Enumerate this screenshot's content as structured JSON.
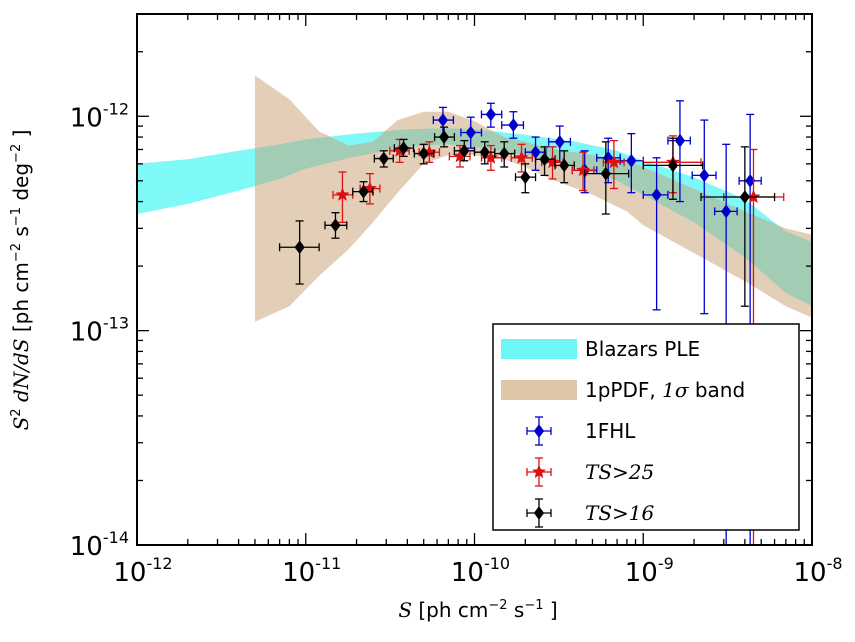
{
  "chart_data": {
    "type": "scatter",
    "title": "",
    "xlabel": {
      "text": "S [ph cm",
      "exp1": "−2",
      "mid": " s",
      "exp2": "−1",
      "tail": " ]"
    },
    "ylabel": {
      "text": "S² dN/dS [ph cm",
      "exp1": "−2",
      "mid": " s",
      "exp2": "−1",
      "mid2": " deg",
      "exp3": "−2",
      "tail": " ]"
    },
    "xscale": "log",
    "yscale": "log",
    "xlim": [
      1e-12,
      1e-08
    ],
    "ylim": [
      1e-14,
      3e-12
    ],
    "x_ticks": [
      {
        "value": 1e-12,
        "base": "10",
        "exp": "-12"
      },
      {
        "value": 1e-11,
        "base": "10",
        "exp": "-11"
      },
      {
        "value": 1e-10,
        "base": "10",
        "exp": "-10"
      },
      {
        "value": 1e-09,
        "base": "10",
        "exp": "-9"
      },
      {
        "value": 1e-08,
        "base": "10",
        "exp": "-8"
      }
    ],
    "y_ticks": [
      {
        "value": 1e-14,
        "base": "10",
        "exp": "-14"
      },
      {
        "value": 1e-13,
        "base": "10",
        "exp": "-13"
      },
      {
        "value": 1e-12,
        "base": "10",
        "exp": "-12"
      }
    ],
    "legend_position": "bottom-right",
    "bands": [
      {
        "name": "Blazars PLE",
        "color": "#54f5f5",
        "opacity": 0.75,
        "x": [
          1e-12,
          2e-12,
          4e-12,
          7e-12,
          1e-11,
          2e-11,
          4e-11,
          7e-11,
          1e-10,
          2e-10,
          4e-10,
          7e-10,
          1e-09,
          2e-09,
          4e-09,
          7e-09,
          1e-08
        ],
        "upper": [
          6e-13,
          6.3e-13,
          6.9e-13,
          7.4e-13,
          7.8e-13,
          8.3e-13,
          8.7e-13,
          8.8e-13,
          8.7e-13,
          8.2e-13,
          7.6e-13,
          6.9e-13,
          6.2e-13,
          5.2e-13,
          4.1e-13,
          2.9e-13,
          2.6e-13
        ],
        "lower": [
          3.5e-13,
          3.9e-13,
          4.5e-13,
          5.1e-13,
          5.7e-13,
          6.5e-13,
          7.2e-13,
          7.4e-13,
          7.2e-13,
          6.6e-13,
          5.8e-13,
          5e-13,
          4.3e-13,
          3.2e-13,
          2.2e-13,
          1.5e-13,
          1.3e-13
        ]
      },
      {
        "name": "1pPDF, 1σ band",
        "color": "#c8a070",
        "opacity": 0.5,
        "x": [
          5e-12,
          8e-12,
          1.2e-11,
          1.8e-11,
          2.5e-11,
          3.5e-11,
          5e-11,
          7e-11,
          1e-10,
          1.5e-10,
          2e-10,
          3e-10,
          5e-10,
          8e-10,
          1e-09,
          2e-09,
          4e-09,
          7e-09,
          1e-08
        ],
        "upper": [
          1.55e-12,
          1.2e-12,
          8.5e-13,
          7.3e-13,
          7.6e-13,
          9.6e-13,
          1.05e-12,
          1.05e-12,
          9.5e-13,
          8e-13,
          7.6e-13,
          7e-13,
          6.6e-13,
          6.2e-13,
          5.8e-13,
          4.6e-13,
          3.6e-13,
          3e-13,
          2.8e-13
        ],
        "lower": [
          1.1e-13,
          1.3e-13,
          1.8e-13,
          2.4e-13,
          3.2e-13,
          4.4e-13,
          6e-13,
          6.6e-13,
          6.6e-13,
          6.3e-13,
          5.8e-13,
          5e-13,
          4.3e-13,
          3.6e-13,
          3.1e-13,
          2.3e-13,
          1.7e-13,
          1.3e-13,
          1.15e-13
        ]
      }
    ],
    "series": [
      {
        "name": "1FHL",
        "color": "#0000cc",
        "marker": "diamond",
        "points": [
          {
            "x": 6.5e-11,
            "y": 9.6e-13,
            "xlo": 5.7e-11,
            "xhi": 7.5e-11,
            "ylo": 8e-13,
            "yhi": 1.1e-12
          },
          {
            "x": 9.5e-11,
            "y": 8.4e-13,
            "xlo": 8.3e-11,
            "xhi": 1.1e-10,
            "ylo": 7.1e-13,
            "yhi": 9.9e-13
          },
          {
            "x": 1.25e-10,
            "y": 1.02e-12,
            "xlo": 1.1e-10,
            "xhi": 1.45e-10,
            "ylo": 8.9e-13,
            "yhi": 1.15e-12
          },
          {
            "x": 1.7e-10,
            "y": 9.1e-13,
            "xlo": 1.45e-10,
            "xhi": 1.95e-10,
            "ylo": 7.9e-13,
            "yhi": 1.05e-12
          },
          {
            "x": 2.3e-10,
            "y": 6.8e-13,
            "xlo": 2e-10,
            "xhi": 2.65e-10,
            "ylo": 5.6e-13,
            "yhi": 8e-13
          },
          {
            "x": 3.2e-10,
            "y": 7.6e-13,
            "xlo": 2.75e-10,
            "xhi": 3.7e-10,
            "ylo": 6.1e-13,
            "yhi": 9e-13
          },
          {
            "x": 4.5e-10,
            "y": 5.6e-13,
            "xlo": 3.8e-10,
            "xhi": 5.3e-10,
            "ylo": 4.4e-13,
            "yhi": 6.9e-13
          },
          {
            "x": 6.2e-10,
            "y": 6.4e-13,
            "xlo": 5.3e-10,
            "xhi": 7.3e-10,
            "ylo": 4.9e-13,
            "yhi": 7.9e-13
          },
          {
            "x": 8.5e-10,
            "y": 6.2e-13,
            "xlo": 7.3e-10,
            "xhi": 1e-09,
            "ylo": 4.4e-13,
            "yhi": 8.3e-13
          },
          {
            "x": 1.2e-09,
            "y": 4.3e-13,
            "xlo": 1e-09,
            "xhi": 1.4e-09,
            "ylo": 1.25e-13,
            "yhi": 6.4e-13
          },
          {
            "x": 1.65e-09,
            "y": 7.7e-13,
            "xlo": 1.4e-09,
            "xhi": 1.9e-09,
            "ylo": 4e-13,
            "yhi": 1.18e-12
          },
          {
            "x": 2.3e-09,
            "y": 5.3e-13,
            "xlo": 1.95e-09,
            "xhi": 2.7e-09,
            "ylo": 1.2e-13,
            "yhi": 9.6e-13
          },
          {
            "x": 3.1e-09,
            "y": 3.6e-13,
            "xlo": 2.65e-09,
            "xhi": 3.6e-09,
            "ylo": 1e-14,
            "yhi": 7.4e-13
          },
          {
            "x": 4.3e-09,
            "y": 5e-13,
            "xlo": 3.7e-09,
            "xhi": 5e-09,
            "ylo": 1e-14,
            "yhi": 1.02e-12
          }
        ]
      },
      {
        "name": "TS>25",
        "color": "#dd1111",
        "marker": "star",
        "points": [
          {
            "x": 1.65e-11,
            "y": 4.3e-13,
            "xlo": 1.45e-11,
            "xhi": 1.9e-11,
            "ylo": 3.2e-13,
            "yhi": 5.5e-13
          },
          {
            "x": 2.4e-11,
            "y": 4.6e-13,
            "xlo": 2.1e-11,
            "xhi": 2.75e-11,
            "ylo": 3.9e-13,
            "yhi": 5.4e-13
          },
          {
            "x": 3.6e-11,
            "y": 6.9e-13,
            "xlo": 3.15e-11,
            "xhi": 4.1e-11,
            "ylo": 6.1e-13,
            "yhi": 7.8e-13
          },
          {
            "x": 5.4e-11,
            "y": 6.8e-13,
            "xlo": 4.7e-11,
            "xhi": 6.2e-11,
            "ylo": 6.1e-13,
            "yhi": 7.6e-13
          },
          {
            "x": 8.2e-11,
            "y": 6.5e-13,
            "xlo": 7.1e-11,
            "xhi": 9.4e-11,
            "ylo": 5.8e-13,
            "yhi": 7.3e-13
          },
          {
            "x": 1.25e-10,
            "y": 6.4e-13,
            "xlo": 1.1e-10,
            "xhi": 1.45e-10,
            "ylo": 5.6e-13,
            "yhi": 7.3e-13
          },
          {
            "x": 1.9e-10,
            "y": 6.4e-13,
            "xlo": 1.65e-10,
            "xhi": 2.2e-10,
            "ylo": 5.5e-13,
            "yhi": 7.4e-13
          },
          {
            "x": 2.9e-10,
            "y": 6.1e-13,
            "xlo": 2.5e-10,
            "xhi": 3.35e-10,
            "ylo": 5.1e-13,
            "yhi": 7.2e-13
          },
          {
            "x": 4.4e-10,
            "y": 5.6e-13,
            "xlo": 3.8e-10,
            "xhi": 5.1e-10,
            "ylo": 4.5e-13,
            "yhi": 6.8e-13
          },
          {
            "x": 6.7e-10,
            "y": 6.1e-13,
            "xlo": 5.8e-10,
            "xhi": 7.7e-10,
            "ylo": 4.6e-13,
            "yhi": 7.7e-13
          },
          {
            "x": 1.5e-09,
            "y": 6.1e-13,
            "xlo": 1e-09,
            "xhi": 2.2e-09,
            "ylo": 4.4e-13,
            "yhi": 8.1e-13
          },
          {
            "x": 4.5e-09,
            "y": 4.2e-13,
            "xlo": 3e-09,
            "xhi": 6.8e-09,
            "ylo": 1e-14,
            "yhi": 7e-13
          }
        ]
      },
      {
        "name": "TS>16",
        "color": "#000000",
        "marker": "diamond",
        "points": [
          {
            "x": 9.2e-12,
            "y": 2.45e-13,
            "xlo": 7e-12,
            "xhi": 1.2e-11,
            "ylo": 1.65e-13,
            "yhi": 3.25e-13
          },
          {
            "x": 1.5e-11,
            "y": 3.1e-13,
            "xlo": 1.3e-11,
            "xhi": 1.75e-11,
            "ylo": 2.7e-13,
            "yhi": 3.55e-13
          },
          {
            "x": 2.2e-11,
            "y": 4.45e-13,
            "xlo": 1.9e-11,
            "xhi": 2.5e-11,
            "ylo": 4e-13,
            "yhi": 4.95e-13
          },
          {
            "x": 2.9e-11,
            "y": 6.35e-13,
            "xlo": 2.55e-11,
            "xhi": 3.3e-11,
            "ylo": 5.8e-13,
            "yhi": 6.9e-13
          },
          {
            "x": 3.8e-11,
            "y": 7.1e-13,
            "xlo": 3.35e-11,
            "xhi": 4.35e-11,
            "ylo": 6.5e-13,
            "yhi": 7.8e-13
          },
          {
            "x": 5e-11,
            "y": 6.7e-13,
            "xlo": 4.4e-11,
            "xhi": 5.75e-11,
            "ylo": 6e-13,
            "yhi": 7.4e-13
          },
          {
            "x": 6.6e-11,
            "y": 8e-13,
            "xlo": 5.8e-11,
            "xhi": 7.6e-11,
            "ylo": 7.2e-13,
            "yhi": 8.9e-13
          },
          {
            "x": 8.7e-11,
            "y": 6.9e-13,
            "xlo": 7.6e-11,
            "xhi": 1e-10,
            "ylo": 6.2e-13,
            "yhi": 7.7e-13
          },
          {
            "x": 1.15e-10,
            "y": 6.8e-13,
            "xlo": 1e-10,
            "xhi": 1.32e-10,
            "ylo": 6e-13,
            "yhi": 7.6e-13
          },
          {
            "x": 1.5e-10,
            "y": 6.7e-13,
            "xlo": 1.32e-10,
            "xhi": 1.73e-10,
            "ylo": 5.8e-13,
            "yhi": 7.6e-13
          },
          {
            "x": 2e-10,
            "y": 5.2e-13,
            "xlo": 1.75e-10,
            "xhi": 2.3e-10,
            "ylo": 4.4e-13,
            "yhi": 6e-13
          },
          {
            "x": 2.6e-10,
            "y": 6.3e-13,
            "xlo": 2.3e-10,
            "xhi": 3e-10,
            "ylo": 5.3e-13,
            "yhi": 7.2e-13
          },
          {
            "x": 3.4e-10,
            "y": 5.9e-13,
            "xlo": 3e-10,
            "xhi": 3.9e-10,
            "ylo": 4.9e-13,
            "yhi": 6.9e-13
          },
          {
            "x": 6e-10,
            "y": 5.4e-13,
            "xlo": 4.5e-10,
            "xhi": 8.2e-10,
            "ylo": 3.5e-13,
            "yhi": 7.6e-13
          },
          {
            "x": 1.5e-09,
            "y": 5.9e-13,
            "xlo": 1e-09,
            "xhi": 2.25e-09,
            "ylo": 4.1e-13,
            "yhi": 7.9e-13
          },
          {
            "x": 4e-09,
            "y": 4.2e-13,
            "xlo": 2.2e-09,
            "xhi": 6e-09,
            "ylo": 1.3e-13,
            "yhi": 7.2e-13
          }
        ]
      }
    ],
    "legend": [
      {
        "label": "Blazars PLE",
        "kind": "band",
        "ref": "Blazars PLE"
      },
      {
        "label": "1pPDF, ",
        "label_math": "1σ",
        "label_tail": " band",
        "kind": "band",
        "ref": "1pPDF, 1σ band"
      },
      {
        "label": "1FHL",
        "kind": "marker",
        "ref": "1FHL"
      },
      {
        "label": "TS>25",
        "kind": "marker",
        "ref": "TS>25",
        "math": true
      },
      {
        "label": "TS>16",
        "kind": "marker",
        "ref": "TS>16",
        "math": true
      }
    ]
  }
}
